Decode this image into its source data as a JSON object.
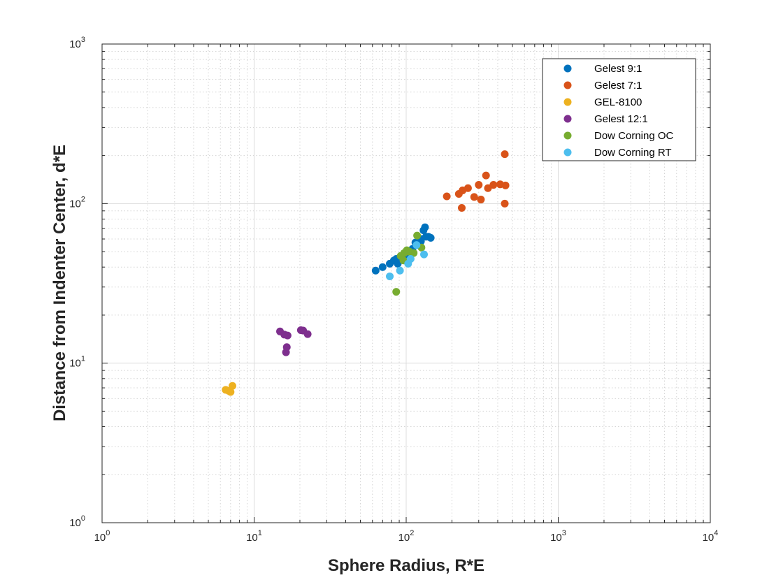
{
  "chart_data": {
    "type": "scatter",
    "title": "",
    "xlabel": "Sphere Radius, R*E",
    "ylabel": "Distance from Indenter Center, d*E",
    "xscale": "log",
    "yscale": "log",
    "xlim": [
      1,
      10000
    ],
    "ylim": [
      1,
      1000
    ],
    "x_ticks": [
      {
        "base": "10",
        "exp": "0",
        "value": 1
      },
      {
        "base": "10",
        "exp": "1",
        "value": 10
      },
      {
        "base": "10",
        "exp": "2",
        "value": 100
      },
      {
        "base": "10",
        "exp": "3",
        "value": 1000
      },
      {
        "base": "10",
        "exp": "4",
        "value": 10000
      }
    ],
    "y_ticks": [
      {
        "base": "10",
        "exp": "0",
        "value": 1
      },
      {
        "base": "10",
        "exp": "1",
        "value": 10
      },
      {
        "base": "10",
        "exp": "2",
        "value": 100
      },
      {
        "base": "10",
        "exp": "3",
        "value": 1000
      }
    ],
    "grid": true,
    "minor_grid": true,
    "legend_position": "top-right",
    "series": [
      {
        "name": "Gelest 9:1",
        "color": "#0072BD",
        "points": [
          [
            63,
            38
          ],
          [
            70,
            40
          ],
          [
            78,
            42
          ],
          [
            83,
            44
          ],
          [
            86,
            45
          ],
          [
            88,
            42
          ],
          [
            95,
            46
          ],
          [
            100,
            48
          ],
          [
            105,
            50
          ],
          [
            110,
            52
          ],
          [
            115,
            57
          ],
          [
            120,
            55
          ],
          [
            125,
            60
          ],
          [
            130,
            68
          ],
          [
            133,
            71
          ],
          [
            135,
            62
          ],
          [
            140,
            62
          ],
          [
            145,
            61
          ],
          [
            125,
            58
          ]
        ]
      },
      {
        "name": "Gelest 7:1",
        "color": "#D95319",
        "points": [
          [
            185,
            111
          ],
          [
            222,
            115
          ],
          [
            235,
            121
          ],
          [
            232,
            94
          ],
          [
            255,
            125
          ],
          [
            280,
            110
          ],
          [
            300,
            131
          ],
          [
            310,
            106
          ],
          [
            335,
            150
          ],
          [
            345,
            125
          ],
          [
            375,
            131
          ],
          [
            415,
            132
          ],
          [
            445,
            204
          ],
          [
            450,
            130
          ],
          [
            445,
            100
          ]
        ]
      },
      {
        "name": "GEL-8100",
        "color": "#EDB120",
        "points": [
          [
            6.5,
            6.8
          ],
          [
            6.8,
            6.7
          ],
          [
            7.2,
            7.2
          ],
          [
            7.0,
            6.6
          ]
        ]
      },
      {
        "name": "Gelest 12:1",
        "color": "#7E2F8E",
        "points": [
          [
            14.8,
            15.8
          ],
          [
            15.8,
            15.1
          ],
          [
            16.6,
            14.9
          ],
          [
            16.4,
            12.6
          ],
          [
            16.2,
            11.7
          ],
          [
            20.3,
            16.1
          ],
          [
            21,
            16.0
          ],
          [
            22.5,
            15.2
          ]
        ]
      },
      {
        "name": "Dow Corning OC",
        "color": "#77AC30",
        "points": [
          [
            86,
            28
          ],
          [
            92,
            47
          ],
          [
            97,
            49
          ],
          [
            101,
            51
          ],
          [
            105,
            50
          ],
          [
            112,
            49
          ],
          [
            118,
            63
          ],
          [
            126,
            53
          ],
          [
            96,
            44
          ]
        ]
      },
      {
        "name": "Dow Corning RT",
        "color": "#4DBEEE",
        "points": [
          [
            78,
            35
          ],
          [
            91,
            38
          ],
          [
            103,
            42
          ],
          [
            107,
            45
          ],
          [
            117,
            55
          ],
          [
            131,
            48
          ]
        ]
      }
    ]
  }
}
